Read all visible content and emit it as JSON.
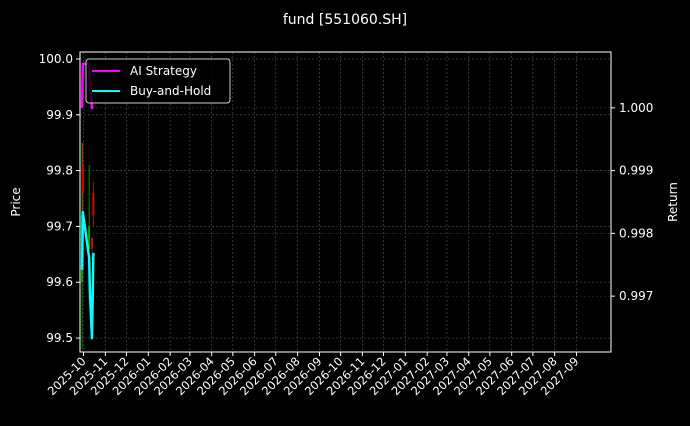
{
  "chart_data": {
    "type": "line",
    "title": "fund [551060.SH]",
    "ylabel_left": "Price",
    "ylabel_right": "Return",
    "ylim_left": [
      99.475,
      100.0125
    ],
    "ylim_right": [
      0.99611,
      1.00089
    ],
    "xlim": [
      "2025-09-26",
      "2027-10-20"
    ],
    "grid": true,
    "legend_placement": "upper-left",
    "yticks_left": [
      "99.5",
      "99.6",
      "99.7",
      "99.8",
      "99.9",
      "100.0"
    ],
    "yticks_right": [
      "0.997",
      "0.998",
      "0.999",
      "1.000"
    ],
    "xticks": [
      "2025-10",
      "2025-11",
      "2025-12",
      "2026-01",
      "2026-02",
      "2026-03",
      "2026-04",
      "2026-05",
      "2026-06",
      "2026-07",
      "2026-08",
      "2026-09",
      "2026-10",
      "2026-11",
      "2026-12",
      "2027-01",
      "2027-02",
      "2027-03",
      "2027-04",
      "2027-05",
      "2027-06",
      "2027-07",
      "2027-08",
      "2027-09"
    ],
    "series": [
      {
        "name": "AI Strategy",
        "color": "#ff00ff",
        "axis": "right",
        "x": [
          "2025-09-29",
          "2025-09-30",
          "2025-10-09",
          "2025-10-10",
          "2025-10-13",
          "2025-10-14",
          "2025-10-15"
        ],
        "values": [
          1.0,
          1.0007,
          1.0007,
          1.0004,
          1.0,
          1.0,
          1.0
        ]
      },
      {
        "name": "Buy-and-Hold",
        "color": "#00ffff",
        "axis": "right",
        "x": [
          "2025-09-29",
          "2025-09-30",
          "2025-10-09",
          "2025-10-10",
          "2025-10-13",
          "2025-10-14",
          "2025-10-15"
        ],
        "values": [
          0.99742,
          0.99834,
          0.99761,
          0.9971,
          0.99633,
          0.997,
          0.99769
        ]
      }
    ],
    "candles": [
      {
        "x": "2025-09-29",
        "open": 99.6,
        "close": 99.72,
        "high": 99.85,
        "low": 99.48
      },
      {
        "x": "2025-09-30",
        "open": 99.81,
        "close": 99.76,
        "high": 99.85,
        "low": 99.7
      },
      {
        "x": "2025-10-09",
        "open": 99.66,
        "close": 99.7,
        "high": 99.81,
        "low": 99.62
      },
      {
        "x": "2025-10-13",
        "open": 99.68,
        "close": 99.66,
        "high": 99.68,
        "low": 99.64
      },
      {
        "x": "2025-10-15",
        "open": 99.76,
        "close": 99.72,
        "high": 99.78,
        "low": 99.7
      }
    ],
    "candle_colors": {
      "up": "#00aa00",
      "down": "#dd0000"
    }
  }
}
